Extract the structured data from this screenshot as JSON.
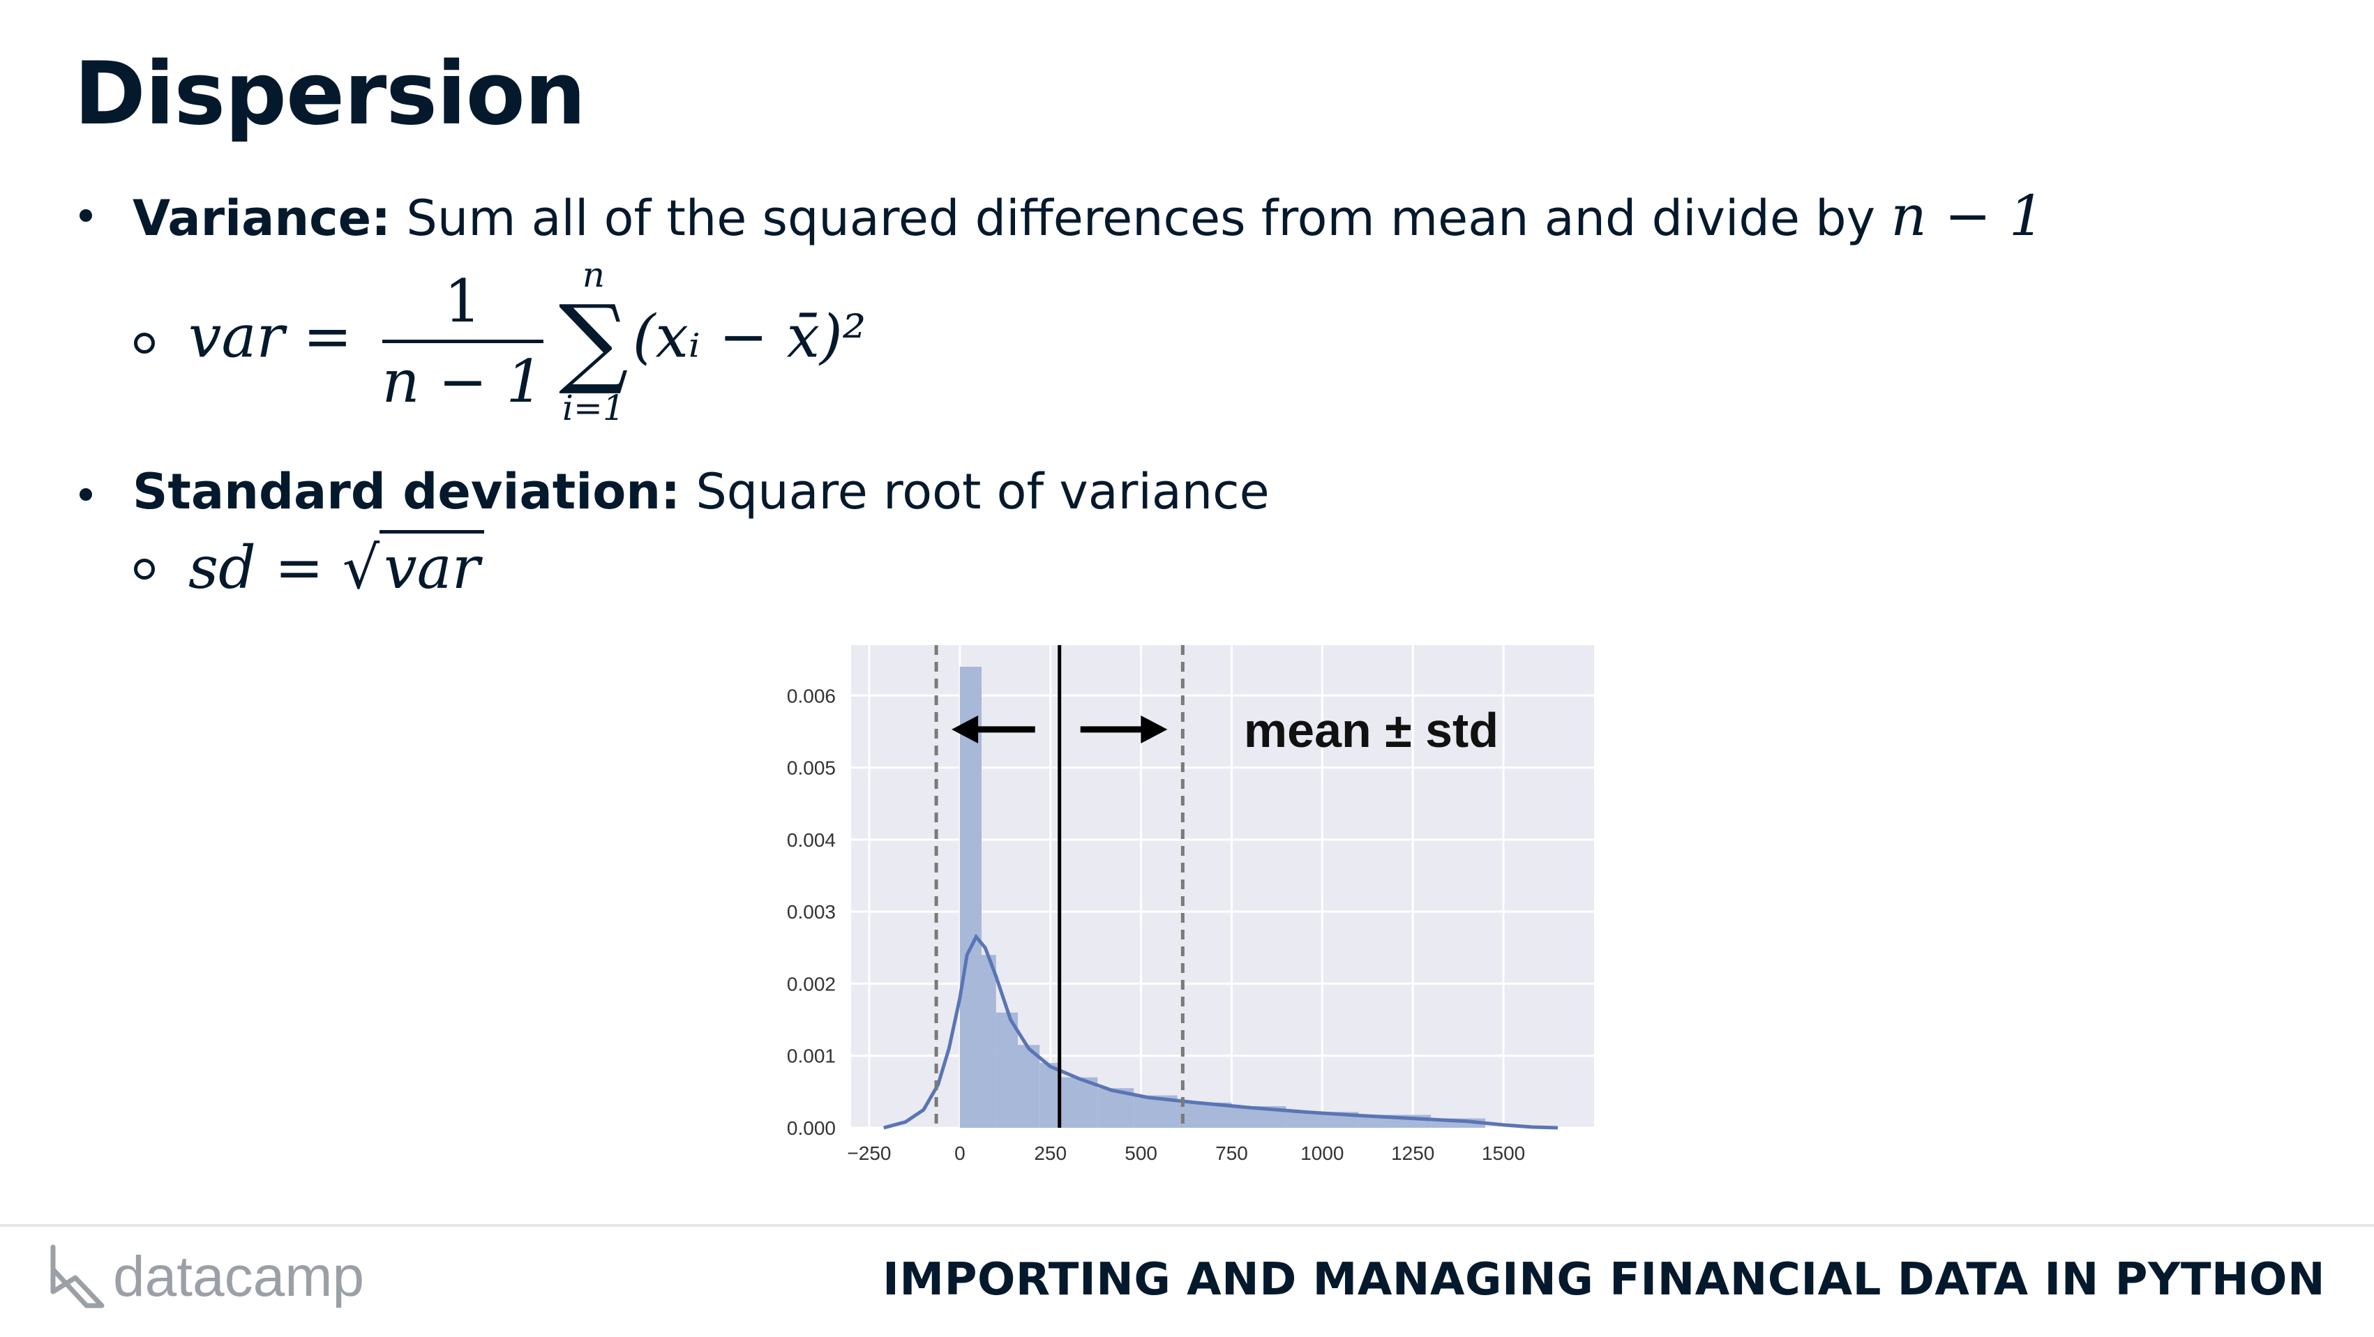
{
  "slide": {
    "title": "Dispersion"
  },
  "bullets": [
    {
      "term": "Variance:",
      "text": " Sum all of the squared differences from mean and divide by ",
      "math": "n − 1"
    },
    {
      "term": "Standard deviation:",
      "text": " Square root of variance"
    }
  ],
  "formulas": {
    "variance": {
      "lhs": "var",
      "eq": "=",
      "numerator": "1",
      "denominator": "n − 1",
      "sum_upper": "n",
      "sum_lower": "i=1",
      "sum_symbol": "∑",
      "summand": "(xᵢ − x̄)²"
    },
    "sd": {
      "lhs": "sd",
      "eq": "=",
      "radical": "√",
      "radicand": "var"
    }
  },
  "chart_data": {
    "type": "histogram",
    "title": "",
    "xlabel": "",
    "ylabel": "",
    "xlim": [
      -300,
      1750
    ],
    "ylim": [
      0,
      0.0067
    ],
    "x_ticks": [
      -250,
      0,
      250,
      500,
      750,
      1000,
      1250,
      1500
    ],
    "y_ticks": [
      0.0,
      0.001,
      0.002,
      0.003,
      0.004,
      0.005,
      0.006
    ],
    "y_tick_labels": [
      "0.000",
      "0.001",
      "0.002",
      "0.003",
      "0.004",
      "0.005",
      "0.006"
    ],
    "bins": [
      {
        "x0": 0,
        "x1": 60,
        "density": 0.0064
      },
      {
        "x0": 60,
        "x1": 100,
        "density": 0.0024
      },
      {
        "x0": 100,
        "x1": 160,
        "density": 0.0016
      },
      {
        "x0": 160,
        "x1": 220,
        "density": 0.00115
      },
      {
        "x0": 220,
        "x1": 280,
        "density": 0.0009
      },
      {
        "x0": 280,
        "x1": 380,
        "density": 0.0007
      },
      {
        "x0": 380,
        "x1": 480,
        "density": 0.00055
      },
      {
        "x0": 480,
        "x1": 600,
        "density": 0.00045
      },
      {
        "x0": 600,
        "x1": 750,
        "density": 0.00035
      },
      {
        "x0": 750,
        "x1": 900,
        "density": 0.0003
      },
      {
        "x0": 900,
        "x1": 1100,
        "density": 0.00022
      },
      {
        "x0": 1100,
        "x1": 1300,
        "density": 0.00018
      },
      {
        "x0": 1300,
        "x1": 1450,
        "density": 0.00013
      }
    ],
    "kde": [
      [
        -210,
        0.0
      ],
      [
        -150,
        8e-05
      ],
      [
        -100,
        0.00025
      ],
      [
        -60,
        0.0006
      ],
      [
        -30,
        0.0011
      ],
      [
        0,
        0.0018
      ],
      [
        20,
        0.0024
      ],
      [
        45,
        0.00265
      ],
      [
        70,
        0.0025
      ],
      [
        100,
        0.0021
      ],
      [
        140,
        0.0015
      ],
      [
        190,
        0.0011
      ],
      [
        250,
        0.00085
      ],
      [
        330,
        0.00068
      ],
      [
        420,
        0.00052
      ],
      [
        520,
        0.00042
      ],
      [
        650,
        0.00035
      ],
      [
        800,
        0.00028
      ],
      [
        950,
        0.00022
      ],
      [
        1100,
        0.00017
      ],
      [
        1250,
        0.00013
      ],
      [
        1400,
        9e-05
      ],
      [
        1500,
        4e-05
      ],
      [
        1580,
        1e-05
      ],
      [
        1650,
        0.0
      ]
    ],
    "mean": 275,
    "std_lower": -65,
    "std_upper": 615,
    "annotation": "mean ± std",
    "colors": {
      "background": "#eaeaf2",
      "grid": "#ffffff",
      "bars": "#a8b8d9",
      "kde": "#5a75b5",
      "mean": "#000000",
      "std": "#7a7a7a"
    }
  },
  "footer": {
    "logo_text": "datacamp",
    "course_title": "IMPORTING AND MANAGING FINANCIAL DATA IN PYTHON"
  }
}
